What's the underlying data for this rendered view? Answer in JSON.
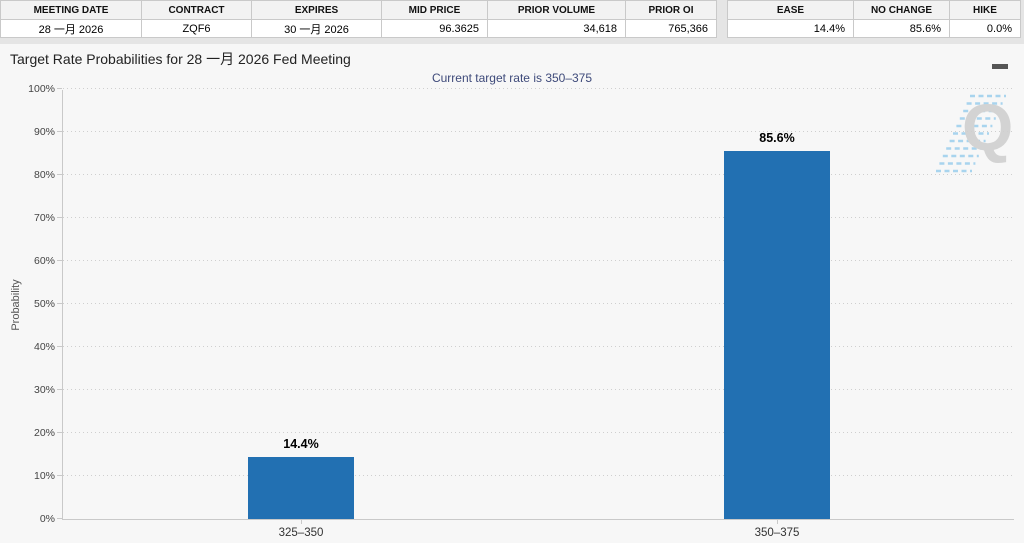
{
  "colors": {
    "bar": "#2270b2",
    "subtitle_text": "#3e4a7a",
    "chart_background": "#f7f7f7",
    "table_header_background": "#f2f2f2",
    "page_band_background": "#e5e5e5"
  },
  "contract_table": {
    "headers": [
      "MEETING DATE",
      "CONTRACT",
      "EXPIRES",
      "MID PRICE",
      "PRIOR VOLUME",
      "PRIOR OI"
    ],
    "row": [
      "28 一月 2026",
      "ZQF6",
      "30 一月 2026",
      "96.3625",
      "34,618",
      "765,366"
    ]
  },
  "moves_table": {
    "headers": [
      "EASE",
      "NO CHANGE",
      "HIKE"
    ],
    "row": [
      "14.4%",
      "85.6%",
      "0.0%"
    ]
  },
  "chart_data": {
    "type": "bar",
    "title": "Target Rate Probabilities for 28 一月 2026 Fed Meeting",
    "subtitle": "Current target rate is 350–375",
    "categories": [
      "325–350",
      "350–375"
    ],
    "values": [
      14.4,
      85.6
    ],
    "value_labels": [
      "14.4%",
      "85.6%"
    ],
    "xlabel": "",
    "ylabel": "Probability",
    "ylim": [
      0,
      100
    ],
    "ytick_step": 10,
    "ytick_suffix": "%",
    "grid": "dotted-horizontal",
    "legend": "none",
    "bar_color": "#2270b2"
  },
  "icons": {
    "menu_icon": "hamburger-menu",
    "watermark_letter": "Q"
  }
}
